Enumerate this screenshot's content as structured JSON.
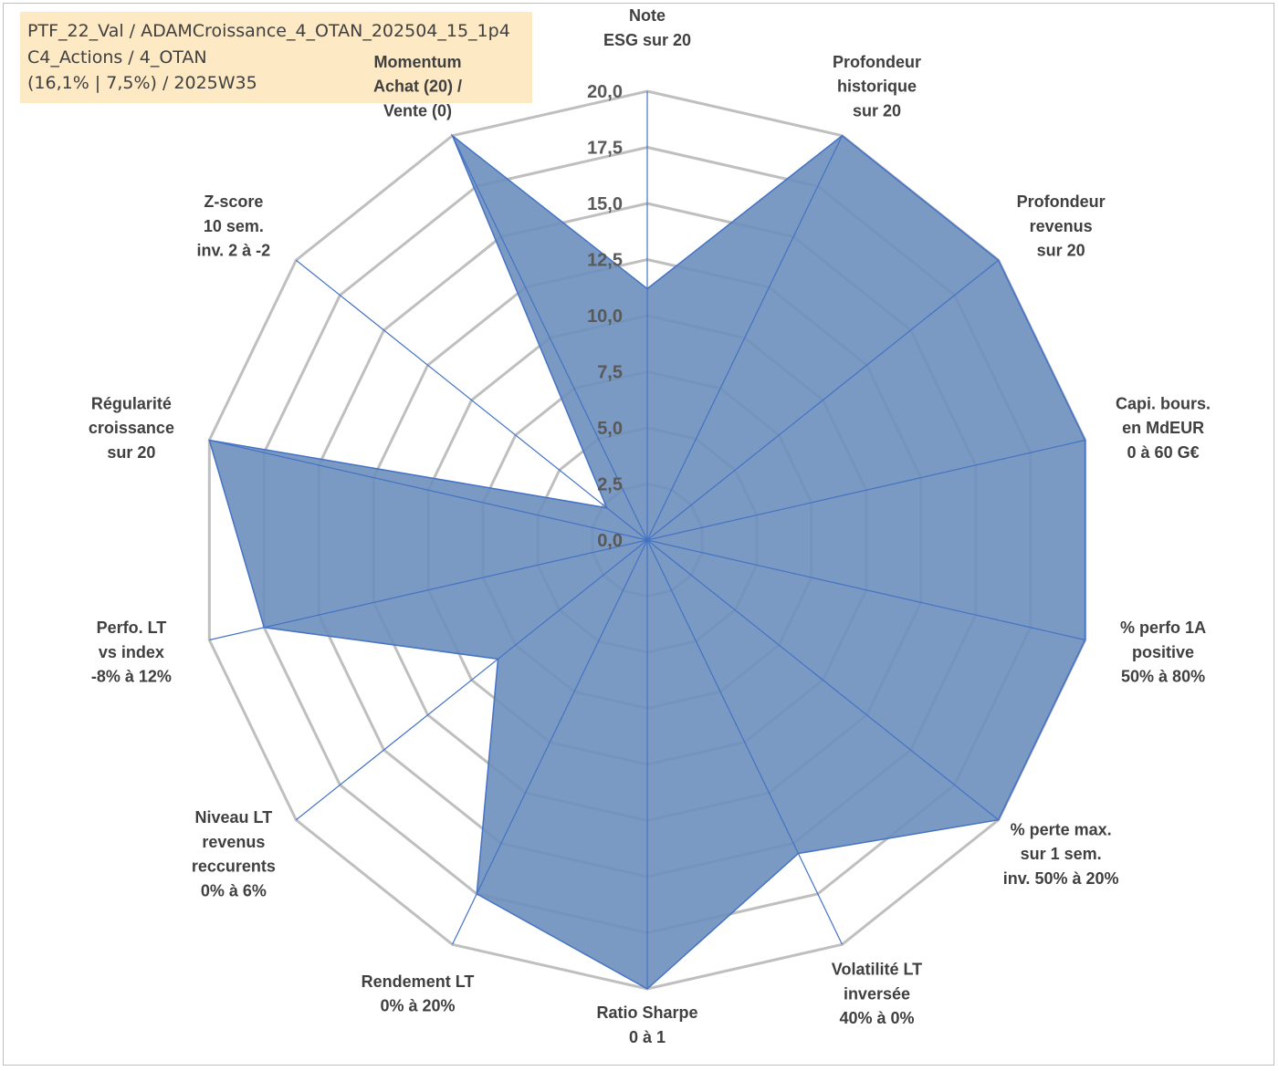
{
  "header": {
    "line1": "PTF_22_Val / ADAMCroissance_4_OTAN_202504_15_1p4",
    "line2": "C4_Actions / 4_OTAN",
    "line3": "(16,1% | 7,5%) / 2025W35"
  },
  "colors": {
    "fill": "#6b8fbc",
    "stroke": "#4472c4",
    "grid": "#bfbfbf",
    "text": "#404040",
    "muted_label": "#a89f8c"
  },
  "chart_data": {
    "type": "radar",
    "rlim": [
      0,
      20
    ],
    "ticks": [
      "0,0",
      "2,5",
      "5,0",
      "7,5",
      "10,0",
      "12,5",
      "15,0",
      "17,5",
      "20,0"
    ],
    "axes": [
      {
        "lines": [
          "Note",
          "ESG sur 20"
        ]
      },
      {
        "lines": [
          "Profondeur",
          "historique",
          "sur 20"
        ]
      },
      {
        "lines": [
          "Profondeur",
          "revenus",
          "sur 20"
        ]
      },
      {
        "lines": [
          "Capi. bours.",
          "en MdEUR",
          "0 à 60 G€"
        ]
      },
      {
        "lines": [
          "% perfo 1A",
          "positive",
          "50% à 80%"
        ]
      },
      {
        "lines": [
          "% perte max.",
          "sur 1 sem.",
          "inv. 50% à 20%"
        ]
      },
      {
        "lines": [
          "Volatilité LT",
          "inversée",
          "40% à 0%"
        ]
      },
      {
        "lines": [
          "Ratio Sharpe",
          "0 à 1"
        ]
      },
      {
        "lines": [
          "Rendement LT",
          "0% à 20%"
        ]
      },
      {
        "lines": [
          "Niveau LT",
          "revenus",
          "reccurents",
          "0% à 6%"
        ]
      },
      {
        "lines": [
          "Perfo. LT",
          "vs index",
          "-8% à 12%"
        ]
      },
      {
        "lines": [
          "Régularité",
          "croissance",
          "sur 20"
        ]
      },
      {
        "lines": [
          "Z-score",
          "10 sem.",
          "inv. 2 à -2"
        ]
      },
      {
        "lines": [
          "Momentum",
          "Achat (20) /",
          "Vente (0)"
        ],
        "first_line_muted": true
      }
    ],
    "series": [
      {
        "values": [
          11.2,
          20,
          20,
          20,
          20,
          20,
          15.5,
          20,
          17.5,
          8.5,
          17.5,
          20,
          2.3,
          20
        ]
      }
    ]
  }
}
